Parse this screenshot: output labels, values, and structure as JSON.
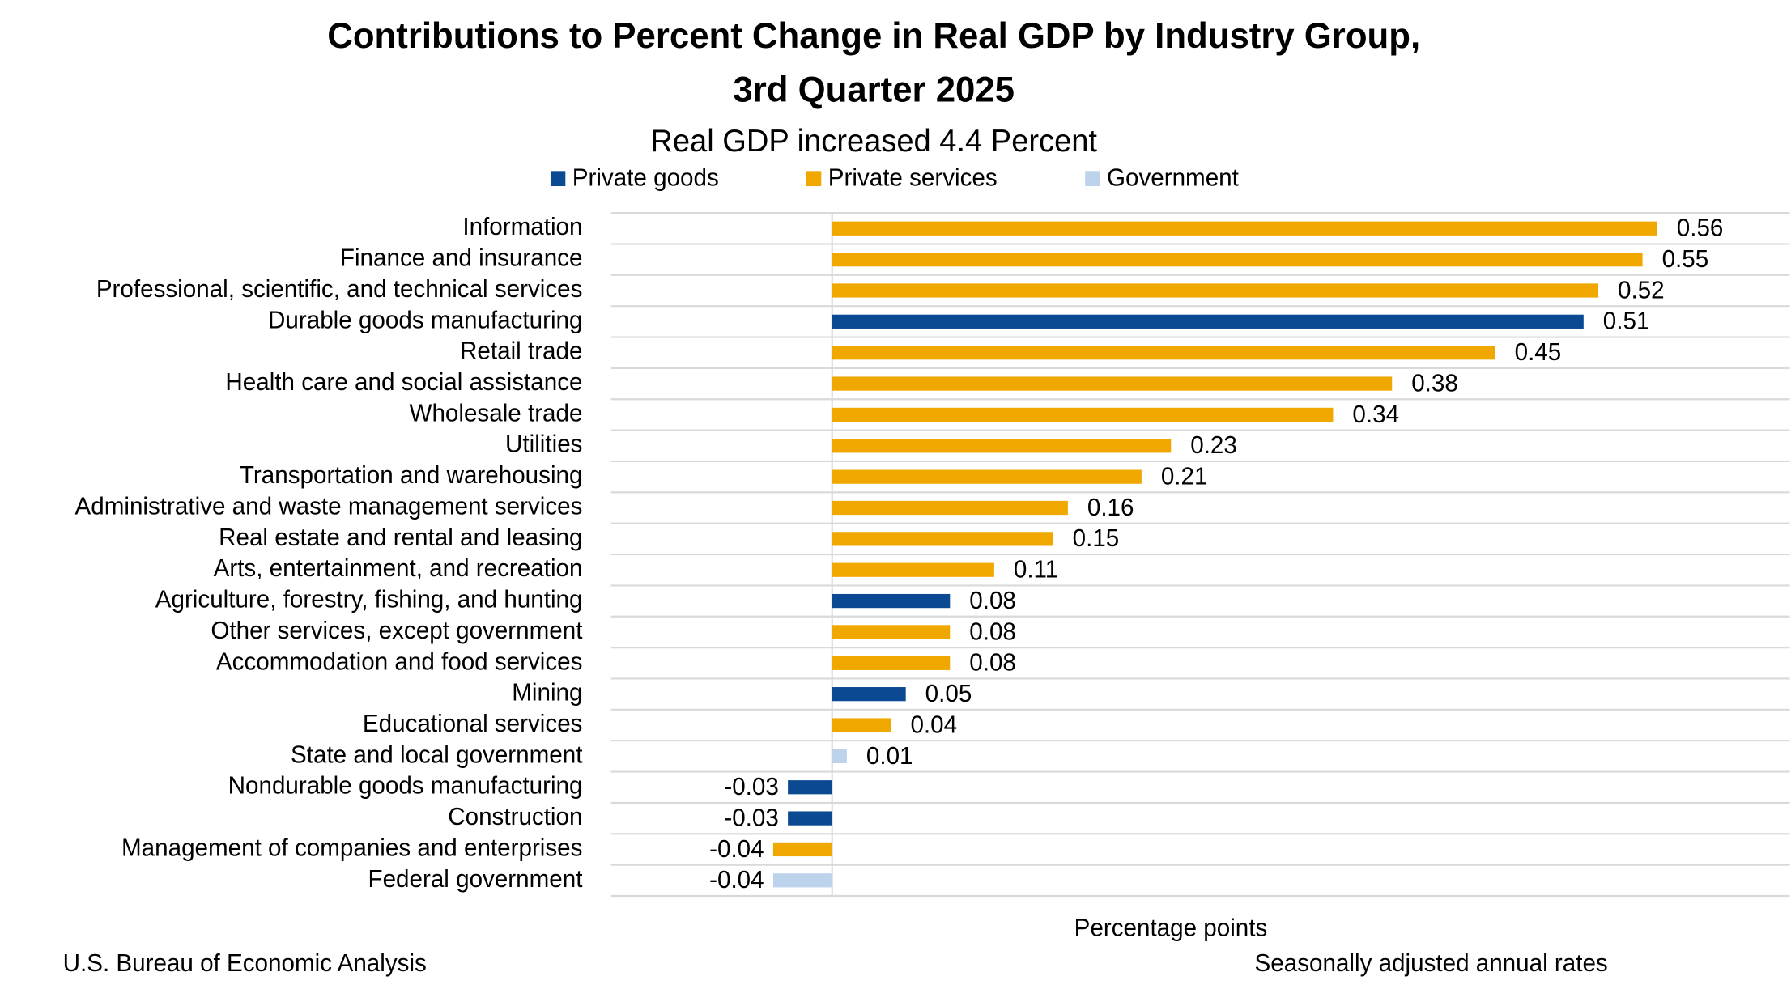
{
  "chart_data": {
    "type": "bar",
    "orientation": "horizontal",
    "title": [
      "Contributions to Percent Change in Real GDP by Industry Group,",
      "3rd Quarter 2025"
    ],
    "subtitle": "Real GDP increased 4.4 Percent",
    "x_label": "Percentage points",
    "source": "U.S. Bureau of Economic Analysis",
    "note": "Seasonally adjusted annual rates",
    "xlim": [
      -0.15,
      0.65
    ],
    "grid": true,
    "categories": [
      "Information",
      "Finance and insurance",
      "Professional, scientific, and technical services",
      "Durable goods manufacturing",
      "Retail trade",
      "Health care and social assistance",
      "Wholesale trade",
      "Utilities",
      "Transportation and warehousing",
      "Administrative and waste management services",
      "Real estate and rental and leasing",
      "Arts, entertainment, and recreation",
      "Agriculture, forestry, fishing, and hunting",
      "Other services, except government",
      "Accommodation and food services",
      "Mining",
      "Educational services",
      "State and local government",
      "Nondurable goods manufacturing",
      "Construction",
      "Management of companies and enterprises",
      "Federal government"
    ],
    "series": [
      {
        "name": "Private goods",
        "color": "#0b4a92",
        "values": [
          null,
          null,
          null,
          0.51,
          null,
          null,
          null,
          null,
          null,
          null,
          null,
          null,
          0.08,
          null,
          null,
          0.05,
          null,
          null,
          -0.03,
          -0.03,
          null,
          null
        ]
      },
      {
        "name": "Private services",
        "color": "#f0a800",
        "values": [
          0.56,
          0.55,
          0.52,
          null,
          0.45,
          0.38,
          0.34,
          0.23,
          0.21,
          0.16,
          0.15,
          0.11,
          null,
          0.08,
          0.08,
          null,
          0.04,
          null,
          null,
          null,
          -0.04,
          null
        ]
      },
      {
        "name": "Government",
        "color": "#bdd3ec",
        "values": [
          null,
          null,
          null,
          null,
          null,
          null,
          null,
          null,
          null,
          null,
          null,
          null,
          null,
          null,
          null,
          null,
          null,
          0.01,
          null,
          null,
          null,
          -0.04
        ]
      }
    ]
  }
}
